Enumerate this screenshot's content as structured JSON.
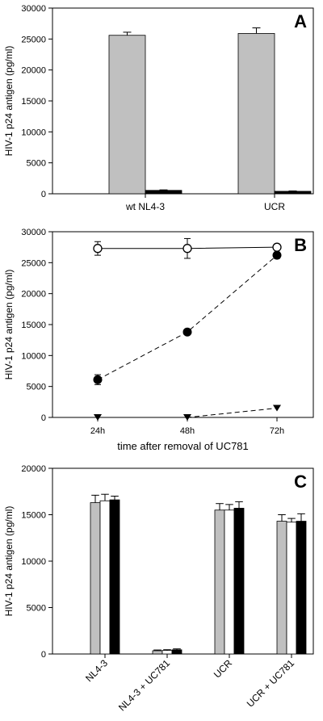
{
  "chart_data": [
    {
      "type": "bar",
      "panel_label": "A",
      "ylabel": "HIV-1 p24 antigen (pg/ml)",
      "xlabel": "",
      "ylim": [
        0,
        30000
      ],
      "yticks": [
        0,
        5000,
        10000,
        15000,
        20000,
        25000,
        30000
      ],
      "categories": [
        "wt NL4-3",
        "UCR"
      ],
      "series": [
        {
          "values": [
            25600,
            25900
          ],
          "errors": [
            500,
            900
          ],
          "color": "#c0c0c0"
        },
        {
          "values": [
            550,
            400
          ],
          "errors": [
            80,
            60
          ],
          "color": "#000000"
        }
      ],
      "grid": false
    },
    {
      "type": "line",
      "panel_label": "B",
      "ylabel": "HIV-1 p24 antigen (pg/ml)",
      "xlabel": "time after removal of UC781",
      "ylim": [
        0,
        30000
      ],
      "yticks": [
        0,
        5000,
        10000,
        15000,
        20000,
        25000,
        30000
      ],
      "categories": [
        "24h",
        "48h",
        "72h"
      ],
      "series": [
        {
          "marker": "open-circle",
          "line": "solid",
          "values": [
            27300,
            27300,
            27500
          ],
          "errors": [
            1100,
            1600,
            400
          ]
        },
        {
          "marker": "filled-circle",
          "line": "dashed",
          "values": [
            6100,
            13800,
            26200
          ],
          "errors": [
            800,
            300,
            500
          ]
        },
        {
          "marker": "filled-triangle-down",
          "line": "dashed",
          "values": [
            0,
            0,
            1500
          ],
          "errors": [
            0,
            0,
            0
          ]
        }
      ],
      "grid": false
    },
    {
      "type": "bar",
      "panel_label": "C",
      "ylabel": "HIV-1 p24 antigen (pg/ml)",
      "xlabel": "",
      "ylim": [
        0,
        20000
      ],
      "yticks": [
        0,
        5000,
        10000,
        15000,
        20000
      ],
      "categories": [
        "NL4-3",
        "NL4-3 + UC781",
        "UCR",
        "UCR + UC781"
      ],
      "series": [
        {
          "values": [
            16300,
            350,
            15500,
            14300
          ],
          "errors": [
            800,
            80,
            700,
            700
          ],
          "color": "#c0c0c0"
        },
        {
          "values": [
            16500,
            380,
            15500,
            14200
          ],
          "errors": [
            700,
            80,
            600,
            400
          ],
          "color": "#ffffff"
        },
        {
          "values": [
            16600,
            450,
            15700,
            14300
          ],
          "errors": [
            400,
            100,
            700,
            800
          ],
          "color": "#000000"
        }
      ],
      "grid": false
    }
  ]
}
